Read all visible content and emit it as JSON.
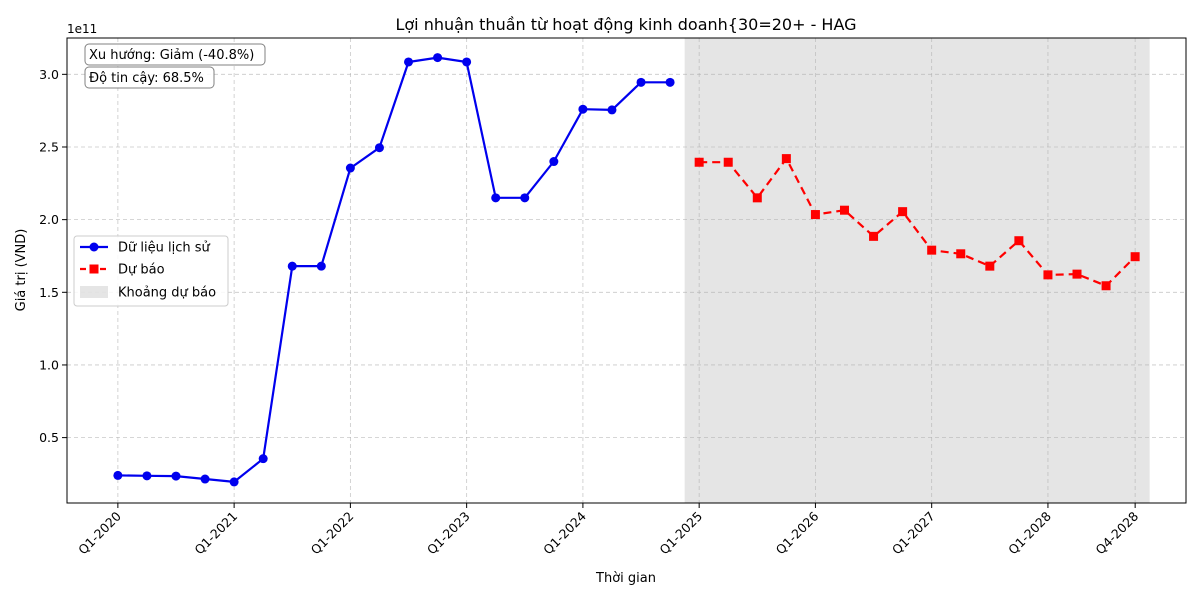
{
  "chart_data": {
    "type": "line",
    "title": "Lợi nhuận thuần từ hoạt động kinh doanh{30=20+ - HAG",
    "xlabel": "Thời gian",
    "ylabel": "Giá trị (VND)",
    "y_scale_label": "1e11",
    "y_unit": 100000000000.0,
    "ylim": [
      0.05,
      3.25
    ],
    "y_ticks": [
      0.5,
      1.0,
      1.5,
      2.0,
      2.5,
      3.0
    ],
    "y_tick_labels": [
      "0.5",
      "1.0",
      "1.5",
      "2.0",
      "2.5",
      "3.0"
    ],
    "x_ticks": [
      {
        "label": "Q1-2020",
        "t": 0
      },
      {
        "label": "Q1-2021",
        "t": 4
      },
      {
        "label": "Q1-2022",
        "t": 8
      },
      {
        "label": "Q1-2023",
        "t": 12
      },
      {
        "label": "Q1-2024",
        "t": 16
      },
      {
        "label": "Q1-2025",
        "t": 20
      },
      {
        "label": "Q1-2026",
        "t": 24
      },
      {
        "label": "Q1-2027",
        "t": 28
      },
      {
        "label": "Q1-2028",
        "t": 32
      },
      {
        "label": "Q4-2028",
        "t": 35
      }
    ],
    "forecast_band": [
      19.5,
      35.5
    ],
    "grid": true,
    "legend_position": "center-left",
    "annotations": [
      "Xu hướng: Giảm (-40.8%)",
      "Độ tin cậy: 68.5%"
    ],
    "series": [
      {
        "name": "Dữ liệu lịch sử",
        "color": "#0000ee",
        "style": "solid",
        "marker": "circle",
        "x": [
          "Q1-2020",
          "Q2-2020",
          "Q3-2020",
          "Q4-2020",
          "Q1-2021",
          "Q2-2021",
          "Q3-2021",
          "Q4-2021",
          "Q1-2022",
          "Q2-2022",
          "Q3-2022",
          "Q4-2022",
          "Q1-2023",
          "Q2-2023",
          "Q3-2023",
          "Q4-2023",
          "Q1-2024",
          "Q2-2024",
          "Q3-2024",
          "Q4-2024"
        ],
        "t": [
          0,
          1,
          2,
          3,
          4,
          5,
          6,
          7,
          8,
          9,
          10,
          11,
          12,
          13,
          14,
          15,
          16,
          17,
          18,
          19
        ],
        "values": [
          0.24,
          0.237,
          0.235,
          0.215,
          0.195,
          0.355,
          1.68,
          1.68,
          2.355,
          2.495,
          3.085,
          3.115,
          3.085,
          2.15,
          2.15,
          2.4,
          2.76,
          2.755,
          2.945,
          2.945
        ]
      },
      {
        "name": "Dự báo",
        "color": "#ff0000",
        "style": "dashed",
        "marker": "square",
        "x": [
          "Q1-2025",
          "Q2-2025",
          "Q3-2025",
          "Q4-2025",
          "Q1-2026",
          "Q2-2026",
          "Q3-2026",
          "Q4-2026",
          "Q1-2027",
          "Q2-2027",
          "Q3-2027",
          "Q4-2027",
          "Q1-2028",
          "Q2-2028",
          "Q3-2028",
          "Q4-2028"
        ],
        "t": [
          20,
          21,
          22,
          23,
          24,
          25,
          26,
          27,
          28,
          29,
          30,
          31,
          32,
          33,
          34,
          35
        ],
        "values": [
          2.395,
          2.395,
          2.15,
          2.42,
          2.035,
          2.065,
          1.885,
          2.055,
          1.79,
          1.765,
          1.68,
          1.855,
          1.62,
          1.625,
          1.545,
          1.745
        ]
      }
    ],
    "legend": [
      {
        "label": "Dữ liệu lịch sử",
        "kind": "line-circle",
        "color": "#0000ee"
      },
      {
        "label": "Dự báo",
        "kind": "dashed-square",
        "color": "#ff0000"
      },
      {
        "label": "Khoảng dự báo",
        "kind": "band",
        "color": "#d3d3d3"
      }
    ]
  }
}
